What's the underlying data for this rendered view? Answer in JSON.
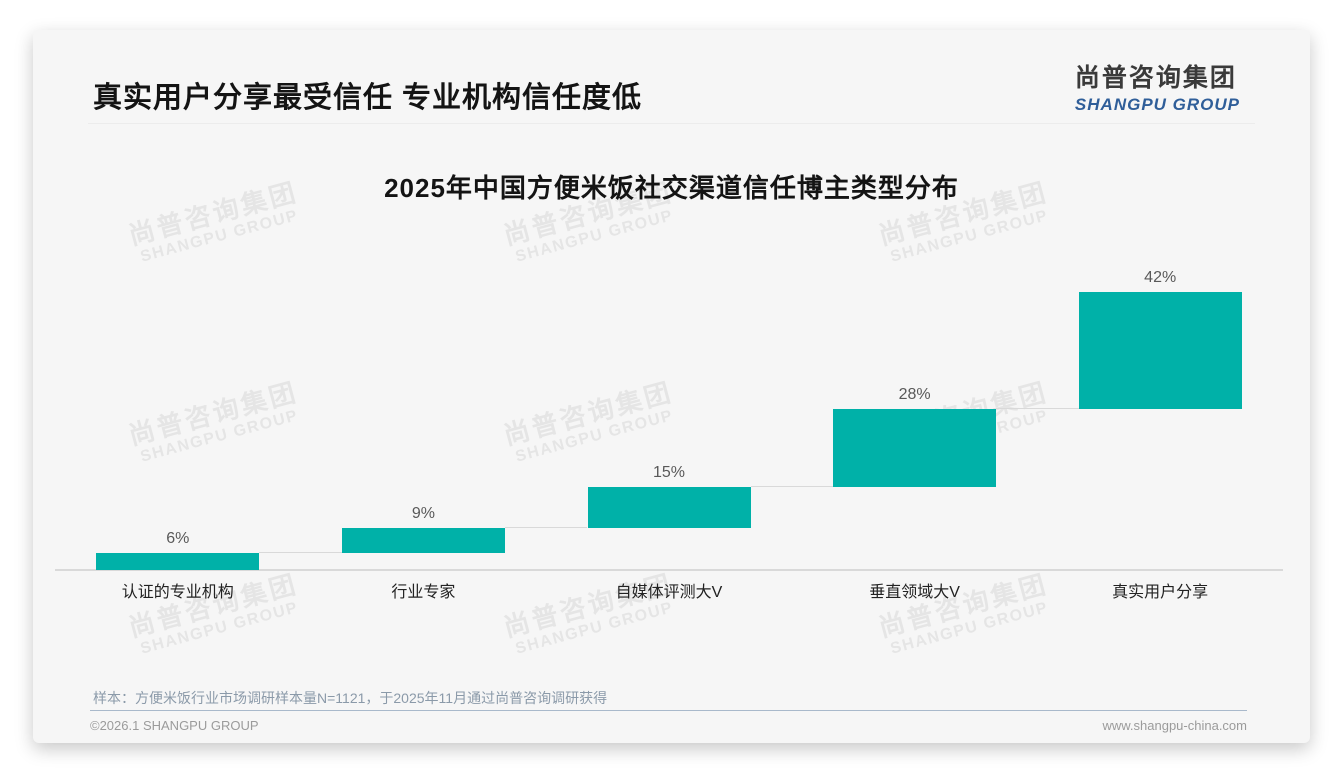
{
  "page": {
    "title": "真实用户分享最受信任 专业机构信任度低",
    "logo": {
      "zh": "尚普咨询集团",
      "en": "SHANGPU GROUP"
    },
    "watermark": {
      "zh": "尚普咨询集团",
      "en": "SHANGPU GROUP"
    },
    "footnote": "样本：方便米饭行业市场调研样本量N=1121，于2025年11月通过尚普咨询调研获得",
    "footer_left": "©2026.1 SHANGPU GROUP",
    "footer_right": "www.shangpu-china.com"
  },
  "colors": {
    "bar": "#00b1a8",
    "value_label": "#595959",
    "connector": "#d9d9d9",
    "axis": "#d9d9d9",
    "logo_blue": "#2f5e99",
    "card_bg": "#f6f6f6"
  },
  "chart_data": {
    "type": "bar",
    "subtype": "waterfall-steps",
    "title": "2025年中国方便米饭社交渠道信任博主类型分布",
    "categories": [
      "认证的专业机构",
      "行业专家",
      "自媒体评测大V",
      "垂直领域大V",
      "真实用户分享"
    ],
    "values": [
      6,
      9,
      15,
      28,
      42
    ],
    "value_labels": [
      "6%",
      "9%",
      "15%",
      "28%",
      "42%"
    ],
    "cumulative_start": [
      0,
      6,
      15,
      30,
      58
    ],
    "xlabel": "",
    "ylabel": "",
    "ylim": [
      0,
      100
    ],
    "grid": false,
    "legend": false,
    "bar_color": "#00b1a8",
    "label_color": "#595959",
    "connector_color": "#d9d9d9"
  }
}
